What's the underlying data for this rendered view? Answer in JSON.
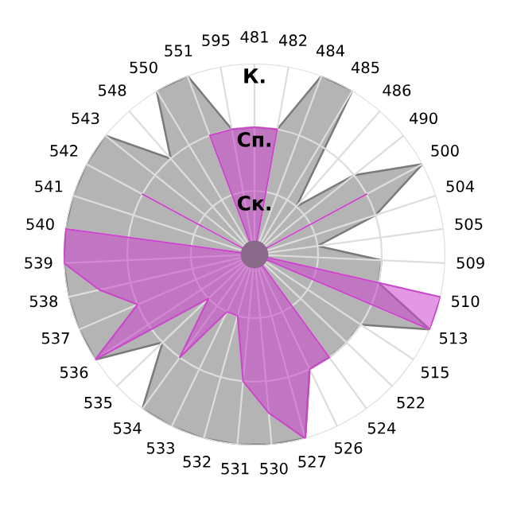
{
  "chart_data": {
    "type": "radar",
    "categories": [
      "481",
      "482",
      "484",
      "485",
      "486",
      "490",
      "500",
      "504",
      "505",
      "509",
      "510",
      "513",
      "515",
      "522",
      "524",
      "526",
      "527",
      "530",
      "531",
      "532",
      "533",
      "534",
      "535",
      "536",
      "537",
      "538",
      "539",
      "540",
      "541",
      "542",
      "543",
      "548",
      "550",
      "551",
      "595"
    ],
    "series": [
      {
        "color": "#b4b4b4",
        "values": [
          2,
          2,
          3,
          3,
          1,
          2,
          3,
          2,
          1,
          2,
          2,
          3,
          2,
          2,
          2,
          2,
          3,
          3,
          3,
          3,
          3,
          3,
          2,
          3,
          3,
          3,
          3,
          3,
          3,
          3,
          3,
          2,
          3,
          3,
          2
        ]
      },
      {
        "color": "#cc44cc",
        "values": [
          2,
          2,
          0,
          0,
          0,
          0,
          2,
          0,
          0,
          0,
          3,
          3,
          0,
          0,
          2,
          2,
          3,
          2.5,
          2,
          1,
          1,
          2,
          1,
          3,
          2,
          2.5,
          3,
          3,
          0,
          2,
          0,
          0,
          0,
          2,
          2
        ]
      }
    ],
    "ylim": [
      0,
      3
    ],
    "yticks": [
      {
        "value": 1,
        "label": "Ск."
      },
      {
        "value": 2,
        "label": "Сп."
      },
      {
        "value": 3,
        "label": "К."
      }
    ],
    "grid": true
  }
}
